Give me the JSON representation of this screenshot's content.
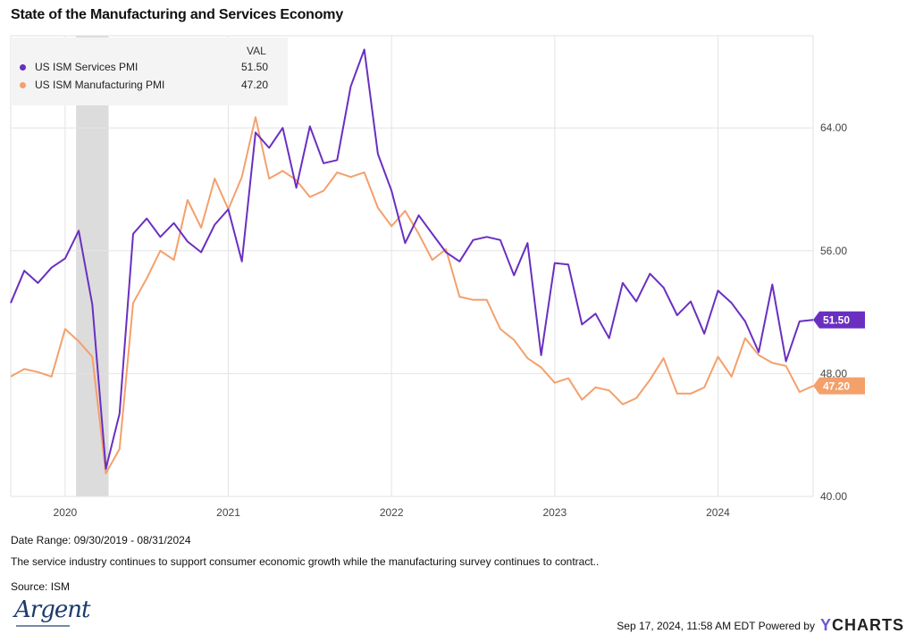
{
  "title": "State of the Manufacturing and Services Economy",
  "legend": {
    "header": "VAL",
    "items": [
      {
        "label": "US ISM Services PMI",
        "value": "51.50",
        "color": "#6a2fc1"
      },
      {
        "label": "US ISM Manufacturing PMI",
        "value": "47.20",
        "color": "#f4a06b"
      }
    ]
  },
  "footer": {
    "date_range": "Date Range: 09/30/2019 - 08/31/2024",
    "description": "The service industry continues to support consumer economic growth while the manufacturing survey continues to contract..",
    "source": "Source: ISM",
    "timestamp": "Sep 17, 2024, 11:58 AM EDT Powered by",
    "brand_y": "Y",
    "brand_rest": "CHARTS",
    "logo_text": "Argent"
  },
  "chart_data": {
    "type": "line",
    "title": "State of the Manufacturing and Services Economy",
    "x": [
      "2019-09",
      "2019-10",
      "2019-11",
      "2019-12",
      "2020-01",
      "2020-02",
      "2020-03",
      "2020-04",
      "2020-05",
      "2020-06",
      "2020-07",
      "2020-08",
      "2020-09",
      "2020-10",
      "2020-11",
      "2020-12",
      "2021-01",
      "2021-02",
      "2021-03",
      "2021-04",
      "2021-05",
      "2021-06",
      "2021-07",
      "2021-08",
      "2021-09",
      "2021-10",
      "2021-11",
      "2021-12",
      "2022-01",
      "2022-02",
      "2022-03",
      "2022-04",
      "2022-05",
      "2022-06",
      "2022-07",
      "2022-08",
      "2022-09",
      "2022-10",
      "2022-11",
      "2022-12",
      "2023-01",
      "2023-02",
      "2023-03",
      "2023-04",
      "2023-05",
      "2023-06",
      "2023-07",
      "2023-08",
      "2023-09",
      "2023-10",
      "2023-11",
      "2023-12",
      "2024-01",
      "2024-02",
      "2024-03",
      "2024-04",
      "2024-05",
      "2024-06",
      "2024-07",
      "2024-08"
    ],
    "series": [
      {
        "name": "US ISM Services PMI",
        "color": "#6a2fc1",
        "end_label": "51.50",
        "values": [
          52.6,
          54.7,
          53.9,
          54.9,
          55.5,
          57.3,
          52.5,
          41.8,
          45.4,
          57.1,
          58.1,
          56.9,
          57.8,
          56.6,
          55.9,
          57.7,
          58.7,
          55.3,
          63.7,
          62.7,
          64.0,
          60.1,
          64.1,
          61.7,
          61.9,
          66.7,
          69.1,
          62.3,
          59.9,
          56.5,
          58.3,
          57.1,
          55.9,
          55.3,
          56.7,
          56.9,
          56.7,
          54.4,
          56.5,
          49.2,
          55.2,
          55.1,
          51.2,
          51.9,
          50.3,
          53.9,
          52.7,
          54.5,
          53.6,
          51.8,
          52.7,
          50.6,
          53.4,
          52.6,
          51.4,
          49.4,
          53.8,
          48.8,
          51.4,
          51.5
        ]
      },
      {
        "name": "US ISM Manufacturing PMI",
        "color": "#f4a06b",
        "end_label": "47.20",
        "values": [
          47.8,
          48.3,
          48.1,
          47.8,
          50.9,
          50.1,
          49.1,
          41.5,
          43.1,
          52.6,
          54.2,
          56.0,
          55.4,
          59.3,
          57.5,
          60.7,
          58.7,
          60.8,
          64.7,
          60.7,
          61.2,
          60.6,
          59.5,
          59.9,
          61.1,
          60.8,
          61.1,
          58.8,
          57.6,
          58.6,
          57.1,
          55.4,
          56.1,
          53.0,
          52.8,
          52.8,
          50.9,
          50.2,
          49.0,
          48.4,
          47.4,
          47.7,
          46.3,
          47.1,
          46.9,
          46.0,
          46.4,
          47.6,
          49.0,
          46.7,
          46.7,
          47.1,
          49.1,
          47.8,
          50.3,
          49.2,
          48.7,
          48.5,
          46.8,
          47.2
        ]
      }
    ],
    "ylim": [
      40,
      70
    ],
    "y_ticks": [
      "40.00",
      "48.00",
      "56.00",
      "64.00"
    ],
    "y_tick_values": [
      40,
      48,
      56,
      64
    ],
    "x_ticks": [
      "2020",
      "2021",
      "2022",
      "2023",
      "2024"
    ],
    "x_tick_dates": [
      "2020-01",
      "2021-01",
      "2022-01",
      "2023-01",
      "2024-01"
    ],
    "recession_band": {
      "start": "2020-02",
      "end": "2020-04",
      "color": "#dcdcdc"
    },
    "grid": true,
    "legend_position": "top-left"
  }
}
